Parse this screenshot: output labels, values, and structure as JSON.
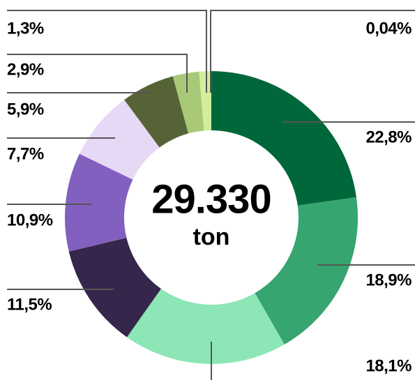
{
  "chart_data": {
    "type": "donut",
    "center_label": "29.330",
    "center_unit": "ton",
    "values": [
      22.8,
      18.9,
      18.1,
      11.5,
      10.9,
      7.7,
      5.9,
      2.9,
      1.3,
      0.04
    ],
    "value_labels": [
      "22,8%",
      "18,9%",
      "18,1%",
      "11,5%",
      "10,9%",
      "7,7%",
      "5,9%",
      "2,9%",
      "1,3%",
      "0,04%"
    ],
    "colors": [
      "#00673a",
      "#37a56f",
      "#8de6b5",
      "#35264c",
      "#8260bf",
      "#e6d9f5",
      "#566337",
      "#a8c977",
      "#d2ee9c",
      "#b6e37f"
    ]
  }
}
